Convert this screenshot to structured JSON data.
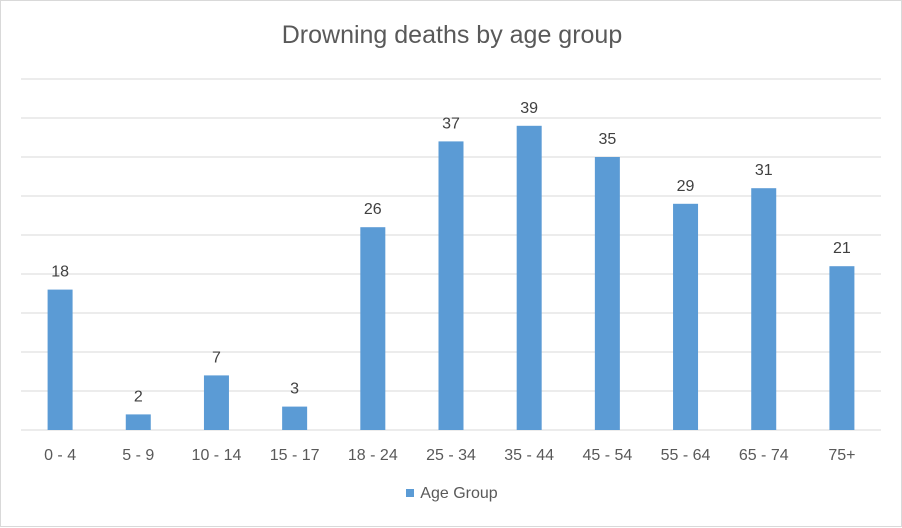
{
  "chart_data": {
    "type": "bar",
    "title": "Drowning deaths by age group",
    "xlabel": "",
    "ylabel": "",
    "categories": [
      "0 - 4",
      "5 - 9",
      "10 - 14",
      "15 - 17",
      "18 - 24",
      "25 - 34",
      "35 - 44",
      "45 - 54",
      "55 - 64",
      "65 - 74",
      "75+"
    ],
    "series": [
      {
        "name": "Age Group",
        "values": [
          18,
          2,
          7,
          3,
          26,
          37,
          39,
          35,
          29,
          31,
          21
        ],
        "color": "#5b9bd5"
      }
    ],
    "ylim": [
      0,
      45
    ],
    "grid": true,
    "y_tick_labels_visible": false,
    "data_labels": true,
    "legend_position": "bottom"
  }
}
